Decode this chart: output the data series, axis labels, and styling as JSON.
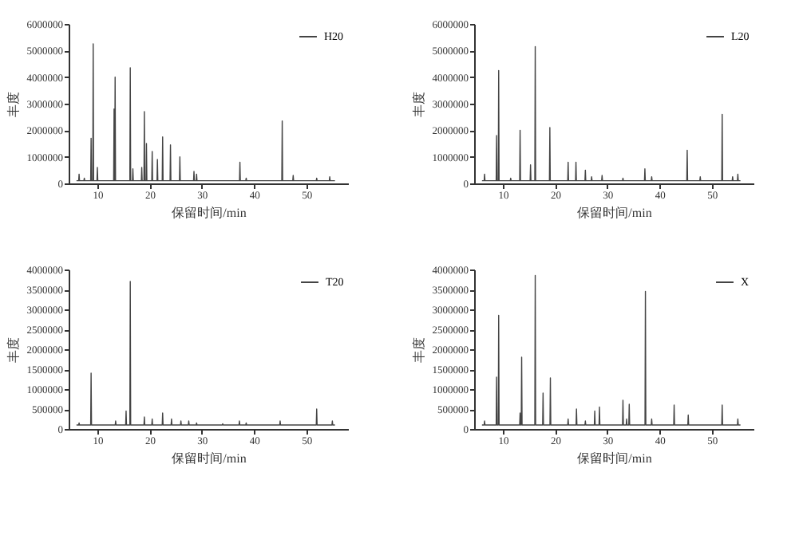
{
  "chart_data": [
    {
      "type": "line",
      "xlabel": "保留时间/min",
      "ylabel": "丰度",
      "xlim": [
        4.5,
        58
      ],
      "xticks": [
        10,
        20,
        30,
        40,
        50
      ],
      "ylim": [
        0,
        6000000
      ],
      "yticks": [
        0,
        1000000,
        2000000,
        3000000,
        4000000,
        5000000,
        6000000
      ],
      "legend": "top right",
      "grid": false,
      "series": [
        {
          "name": "H20",
          "color": "#444444",
          "x": [
            6,
            6.42,
            6.5,
            6.58,
            7.42,
            7.5,
            7.58,
            8.72,
            8.8,
            8.88,
            9.12,
            9.2,
            9.28,
            9.92,
            10,
            10.08,
            13.12,
            13.2,
            13.28,
            13.32,
            13.4,
            13.48,
            16.22,
            16.3,
            16.38,
            16.72,
            16.8,
            16.88,
            18.42,
            18.5,
            18.58,
            18.92,
            19,
            19.08,
            19.32,
            19.4,
            19.48,
            20.42,
            20.5,
            20.58,
            21.42,
            21.5,
            21.58,
            22.42,
            22.5,
            22.58,
            23.92,
            24,
            24.08,
            25.72,
            25.8,
            25.88,
            28.42,
            28.5,
            28.58,
            28.92,
            29,
            29.08,
            37.22,
            37.3,
            37.38,
            38.42,
            38.5,
            38.58,
            45.32,
            45.4,
            45.48,
            47.42,
            47.5,
            47.58,
            51.92,
            52,
            52.08,
            54.42,
            54.5,
            54.58,
            55.5
          ],
          "values": [
            100000,
            100000,
            350000,
            100000,
            100000,
            200000,
            100000,
            100000,
            1700000,
            100000,
            100000,
            5250000,
            100000,
            100000,
            600000,
            100000,
            100000,
            2800000,
            100000,
            100000,
            4000000,
            100000,
            100000,
            4350000,
            100000,
            100000,
            550000,
            100000,
            100000,
            600000,
            100000,
            100000,
            2700000,
            100000,
            100000,
            1500000,
            100000,
            100000,
            1200000,
            100000,
            100000,
            900000,
            100000,
            100000,
            1750000,
            100000,
            100000,
            1450000,
            100000,
            100000,
            1000000,
            100000,
            100000,
            450000,
            100000,
            100000,
            350000,
            100000,
            100000,
            800000,
            100000,
            100000,
            200000,
            100000,
            100000,
            2350000,
            100000,
            100000,
            300000,
            100000,
            100000,
            200000,
            100000,
            100000,
            250000,
            100000,
            100000
          ]
        }
      ]
    },
    {
      "type": "line",
      "xlabel": "保留时间/min",
      "ylabel": "丰度",
      "xlim": [
        4.5,
        58
      ],
      "xticks": [
        10,
        20,
        30,
        40,
        50
      ],
      "ylim": [
        0,
        6000000
      ],
      "yticks": [
        0,
        1000000,
        2000000,
        3000000,
        4000000,
        5000000,
        6000000
      ],
      "legend": "top right",
      "grid": false,
      "series": [
        {
          "name": "L20",
          "color": "#444444",
          "x": [
            6,
            6.42,
            6.5,
            6.58,
            8.72,
            8.8,
            8.88,
            9.12,
            9.2,
            9.28,
            11.42,
            11.5,
            11.58,
            13.22,
            13.3,
            13.38,
            15.22,
            15.3,
            15.38,
            16.12,
            16.2,
            16.28,
            18.92,
            19,
            19.08,
            22.42,
            22.5,
            22.58,
            23.92,
            24,
            24.08,
            25.72,
            25.8,
            25.88,
            26.92,
            27,
            27.08,
            28.92,
            29,
            29.08,
            32.92,
            33,
            33.08,
            37.12,
            37.2,
            37.28,
            38.42,
            38.5,
            38.58,
            45.22,
            45.3,
            45.38,
            47.72,
            47.8,
            47.88,
            51.92,
            52,
            52.08,
            53.92,
            54,
            54.08,
            54.92,
            55,
            55.08,
            55.5
          ],
          "values": [
            100000,
            100000,
            350000,
            100000,
            100000,
            1800000,
            100000,
            100000,
            4250000,
            100000,
            100000,
            200000,
            100000,
            100000,
            2000000,
            100000,
            100000,
            700000,
            100000,
            100000,
            5150000,
            100000,
            100000,
            2100000,
            100000,
            100000,
            800000,
            100000,
            100000,
            800000,
            100000,
            100000,
            500000,
            100000,
            100000,
            250000,
            100000,
            100000,
            300000,
            100000,
            100000,
            200000,
            100000,
            100000,
            550000,
            100000,
            100000,
            250000,
            100000,
            100000,
            1250000,
            100000,
            100000,
            250000,
            100000,
            100000,
            2600000,
            100000,
            100000,
            250000,
            100000,
            100000,
            350000,
            100000,
            100000
          ]
        }
      ]
    },
    {
      "type": "line",
      "xlabel": "保留时间/min",
      "ylabel": "丰度",
      "xlim": [
        4.5,
        58
      ],
      "xticks": [
        10,
        20,
        30,
        40,
        50
      ],
      "ylim": [
        0,
        4000000
      ],
      "yticks": [
        0,
        500000,
        1000000,
        1500000,
        2000000,
        2500000,
        3000000,
        3500000,
        4000000
      ],
      "legend": "top right",
      "grid": false,
      "series": [
        {
          "name": "T20",
          "color": "#444444",
          "x": [
            6,
            6.42,
            6.5,
            6.58,
            8.72,
            8.8,
            8.88,
            13.42,
            13.5,
            13.58,
            15.42,
            15.5,
            15.58,
            16.22,
            16.3,
            16.38,
            18.92,
            19,
            19.08,
            20.42,
            20.5,
            20.58,
            22.42,
            22.5,
            22.58,
            24.12,
            24.2,
            24.28,
            25.92,
            26,
            26.08,
            27.42,
            27.5,
            27.58,
            28.92,
            29,
            29.08,
            33.92,
            34,
            34.08,
            37.12,
            37.2,
            37.28,
            38.42,
            38.5,
            38.58,
            44.92,
            45,
            45.08,
            51.92,
            52,
            52.08,
            54.92,
            55,
            55.08,
            55.5
          ],
          "values": [
            100000,
            100000,
            150000,
            100000,
            100000,
            1400000,
            100000,
            100000,
            200000,
            100000,
            100000,
            450000,
            100000,
            100000,
            3700000,
            100000,
            100000,
            300000,
            100000,
            100000,
            250000,
            100000,
            100000,
            400000,
            100000,
            100000,
            250000,
            100000,
            100000,
            200000,
            100000,
            100000,
            200000,
            100000,
            100000,
            150000,
            100000,
            100000,
            130000,
            100000,
            100000,
            200000,
            100000,
            100000,
            150000,
            100000,
            100000,
            200000,
            100000,
            100000,
            500000,
            100000,
            100000,
            200000,
            100000,
            100000
          ]
        }
      ]
    },
    {
      "type": "line",
      "xlabel": "保留时间/min",
      "ylabel": "丰度",
      "xlim": [
        4.5,
        58
      ],
      "xticks": [
        10,
        20,
        30,
        40,
        50
      ],
      "ylim": [
        0,
        4000000
      ],
      "yticks": [
        0,
        500000,
        1000000,
        1500000,
        2000000,
        2500000,
        3000000,
        3500000,
        4000000
      ],
      "legend": "top right",
      "grid": false,
      "series": [
        {
          "name": "X",
          "color": "#444444",
          "x": [
            6,
            6.42,
            6.5,
            6.58,
            8.72,
            8.8,
            8.88,
            9.12,
            9.2,
            9.28,
            13.22,
            13.3,
            13.38,
            13.52,
            13.6,
            13.68,
            16.12,
            16.2,
            16.28,
            17.62,
            17.7,
            17.78,
            19.02,
            19.1,
            19.18,
            22.42,
            22.5,
            22.58,
            24.02,
            24.1,
            24.18,
            25.72,
            25.8,
            25.88,
            27.52,
            27.6,
            27.68,
            28.42,
            28.5,
            28.58,
            32.92,
            33,
            33.08,
            33.62,
            33.7,
            33.78,
            34.12,
            34.2,
            34.28,
            37.22,
            37.3,
            37.38,
            38.42,
            38.5,
            38.58,
            42.72,
            42.8,
            42.88,
            45.42,
            45.5,
            45.58,
            51.92,
            52,
            52.08,
            54.92,
            55,
            55.08,
            55.5
          ],
          "values": [
            100000,
            100000,
            200000,
            100000,
            100000,
            1300000,
            100000,
            100000,
            2850000,
            100000,
            100000,
            400000,
            100000,
            100000,
            1800000,
            100000,
            100000,
            3850000,
            100000,
            100000,
            900000,
            100000,
            100000,
            1280000,
            100000,
            100000,
            250000,
            100000,
            100000,
            500000,
            100000,
            100000,
            200000,
            100000,
            100000,
            450000,
            100000,
            100000,
            550000,
            100000,
            100000,
            720000,
            100000,
            100000,
            250000,
            100000,
            100000,
            620000,
            100000,
            100000,
            3450000,
            100000,
            100000,
            250000,
            100000,
            100000,
            600000,
            100000,
            100000,
            350000,
            100000,
            100000,
            600000,
            100000,
            100000,
            250000,
            100000,
            100000
          ]
        }
      ]
    }
  ]
}
